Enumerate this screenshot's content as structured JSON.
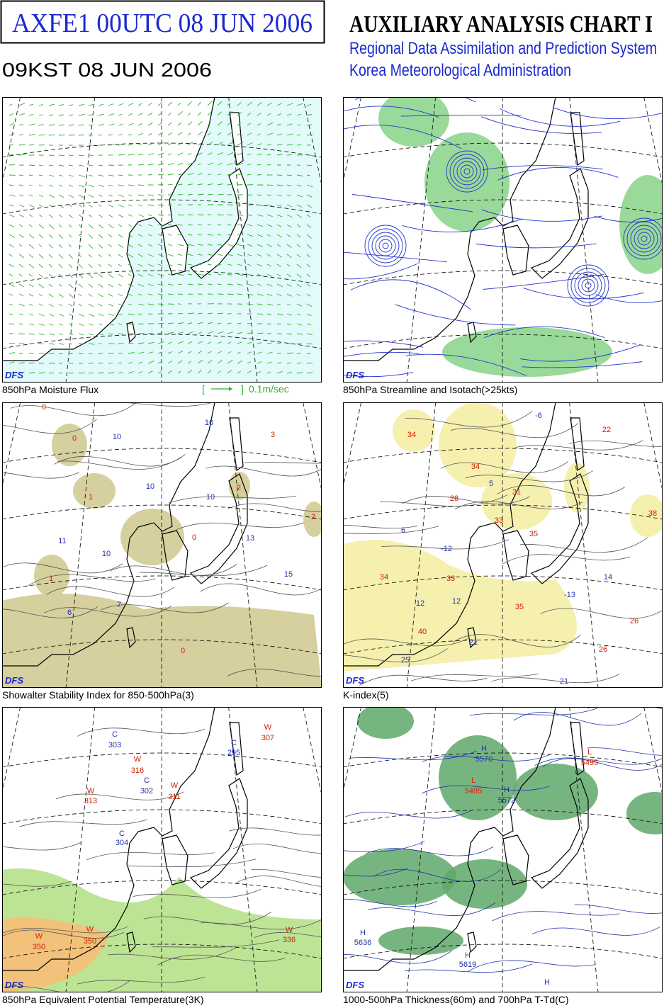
{
  "header": {
    "title": "AXFE1  00UTC 08 JUN 2006",
    "local_time": "09KST 08 JUN 2006",
    "chart_name": "AUXILIARY ANALYSIS CHART I",
    "system": "Regional Data Assimilation and Prediction System",
    "agency": "Korea Meteorological Administration"
  },
  "panels": [
    {
      "caption": "850hPa Moisture Flux",
      "badge": "DFS",
      "legend": {
        "open": "[",
        "close": "]",
        "unit": "0.1m/sec"
      },
      "labels": []
    },
    {
      "caption": "850hPa Streamline and Isotach(>25kts)",
      "badge": "DFS",
      "labels": []
    },
    {
      "caption": "Showalter Stability Index for 850-500hPa(3)",
      "badge": "DFS",
      "labels": [
        {
          "text": "0",
          "color": "#cc2200"
        },
        {
          "text": "0",
          "color": "#cc2200"
        },
        {
          "text": "10",
          "color": "#2233aa"
        },
        {
          "text": "16",
          "color": "#2233aa"
        },
        {
          "text": "3",
          "color": "#cc2200"
        },
        {
          "text": "10",
          "color": "#2233aa"
        },
        {
          "text": "1",
          "color": "#cc2200"
        },
        {
          "text": "10",
          "color": "#2233aa"
        },
        {
          "text": "2",
          "color": "#cc2200"
        },
        {
          "text": "11",
          "color": "#2233aa"
        },
        {
          "text": "10",
          "color": "#2233aa"
        },
        {
          "text": "0",
          "color": "#cc2200"
        },
        {
          "text": "13",
          "color": "#2233aa"
        },
        {
          "text": "1",
          "color": "#cc2200"
        },
        {
          "text": "15",
          "color": "#2233aa"
        },
        {
          "text": "7",
          "color": "#2233aa"
        },
        {
          "text": "6",
          "color": "#2233aa"
        },
        {
          "text": "0",
          "color": "#cc2200"
        },
        {
          "text": "2",
          "color": "#cc2200"
        }
      ]
    },
    {
      "caption": "K-index(5)",
      "badge": "DFS",
      "labels": [
        {
          "text": "34",
          "color": "#cc2200"
        },
        {
          "text": "-6",
          "color": "#2233aa"
        },
        {
          "text": "22",
          "color": "#cc2200"
        },
        {
          "text": "34",
          "color": "#cc2200"
        },
        {
          "text": "5",
          "color": "#2233aa"
        },
        {
          "text": "28",
          "color": "#cc2200"
        },
        {
          "text": "31",
          "color": "#cc2200"
        },
        {
          "text": "33",
          "color": "#cc2200"
        },
        {
          "text": "35",
          "color": "#cc2200"
        },
        {
          "text": "-12",
          "color": "#2233aa"
        },
        {
          "text": "6",
          "color": "#2233aa"
        },
        {
          "text": "34",
          "color": "#cc2200"
        },
        {
          "text": "33",
          "color": "#cc2200"
        },
        {
          "text": "12",
          "color": "#2233aa"
        },
        {
          "text": "12",
          "color": "#2233aa"
        },
        {
          "text": "14",
          "color": "#2233aa"
        },
        {
          "text": "-13",
          "color": "#2233aa"
        },
        {
          "text": "35",
          "color": "#cc2200"
        },
        {
          "text": "40",
          "color": "#cc2200"
        },
        {
          "text": "21",
          "color": "#2233aa"
        },
        {
          "text": "25",
          "color": "#2233aa"
        },
        {
          "text": "26",
          "color": "#cc2200"
        },
        {
          "text": "26",
          "color": "#cc2200"
        },
        {
          "text": "21",
          "color": "#2233aa"
        },
        {
          "text": "38",
          "color": "#cc2200"
        }
      ]
    },
    {
      "caption": "850hPa Equivalent Potential Temperature(3K)",
      "badge": "DFS",
      "labels": [
        {
          "text": "W",
          "color": "#cc2200"
        },
        {
          "text": "307",
          "color": "#cc2200"
        },
        {
          "text": "C",
          "color": "#2233aa"
        },
        {
          "text": "303",
          "color": "#2233aa"
        },
        {
          "text": "C",
          "color": "#2233aa"
        },
        {
          "text": "295",
          "color": "#2233aa"
        },
        {
          "text": "W",
          "color": "#cc2200"
        },
        {
          "text": "316",
          "color": "#cc2200"
        },
        {
          "text": "C",
          "color": "#2233aa"
        },
        {
          "text": "302",
          "color": "#2233aa"
        },
        {
          "text": "W",
          "color": "#cc2200"
        },
        {
          "text": "311",
          "color": "#cc2200"
        },
        {
          "text": "W",
          "color": "#cc2200"
        },
        {
          "text": "313",
          "color": "#cc2200"
        },
        {
          "text": "C",
          "color": "#2233aa"
        },
        {
          "text": "304",
          "color": "#2233aa"
        },
        {
          "text": "W",
          "color": "#cc2200"
        },
        {
          "text": "350",
          "color": "#cc2200"
        },
        {
          "text": "W",
          "color": "#cc2200"
        },
        {
          "text": "350",
          "color": "#cc2200"
        },
        {
          "text": "W",
          "color": "#cc2200"
        },
        {
          "text": "336",
          "color": "#cc2200"
        }
      ]
    },
    {
      "caption": "1000-500hPa Thickness(60m) and 700hPa T-Td(C)",
      "badge": "DFS",
      "labels": [
        {
          "text": "H",
          "color": "#2233aa"
        },
        {
          "text": "5570",
          "color": "#2233aa"
        },
        {
          "text": "L",
          "color": "#cc2200"
        },
        {
          "text": "5495",
          "color": "#cc2200"
        },
        {
          "text": "H",
          "color": "#2233aa"
        },
        {
          "text": "5572",
          "color": "#2233aa"
        },
        {
          "text": "L",
          "color": "#cc2200"
        },
        {
          "text": "5495",
          "color": "#cc2200"
        },
        {
          "text": "H",
          "color": "#2233aa"
        },
        {
          "text": "5619",
          "color": "#2233aa"
        },
        {
          "text": "H",
          "color": "#2233aa"
        },
        {
          "text": "5636",
          "color": "#2233aa"
        },
        {
          "text": "H",
          "color": "#2233aa"
        }
      ]
    }
  ]
}
